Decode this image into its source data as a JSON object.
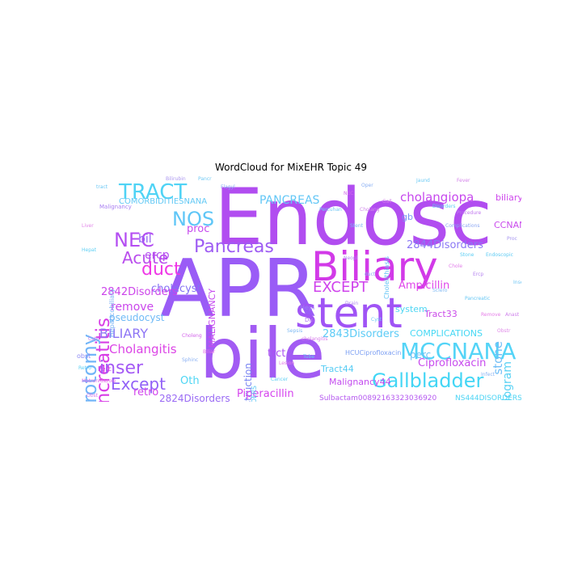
{
  "title": "WordCloud for MixEHR Topic 49",
  "words": [
    {
      "text": "Endosc",
      "color": "#b14df0"
    },
    {
      "text": "APR",
      "color": "#9a5cf6"
    },
    {
      "text": "bile",
      "color": "#a25bf3"
    },
    {
      "text": "Biliary",
      "color": "#d23ae8"
    },
    {
      "text": "stent",
      "color": "#a054f5"
    },
    {
      "text": "MCCNANA",
      "color": "#54d4f7"
    },
    {
      "text": "Gallbladder",
      "color": "#43d6f5"
    },
    {
      "text": "pancreatitis",
      "color": "#d83ce6"
    },
    {
      "text": "sphincterotomy",
      "color": "#72b5f8"
    },
    {
      "text": "TRACT",
      "color": "#4fd3f5"
    },
    {
      "text": "NEC",
      "color": "#b44ef2"
    },
    {
      "text": "NOS",
      "color": "#5fc6f7"
    },
    {
      "text": "Pancreas",
      "color": "#9e5cf3"
    },
    {
      "text": "Acute",
      "color": "#b94ded"
    },
    {
      "text": "duct",
      "color": "#ef38e6"
    },
    {
      "text": "inser",
      "color": "#a45af5"
    },
    {
      "text": "Except",
      "color": "#9262f7"
    },
    {
      "text": "BILIARY",
      "color": "#8e75f5"
    },
    {
      "text": "Cholangitis",
      "color": "#dc44e6"
    },
    {
      "text": "EXCEPT",
      "color": "#cf42ec"
    },
    {
      "text": "PANCREAS",
      "color": "#63c7f6"
    },
    {
      "text": "cholangiopa",
      "color": "#c748ee"
    },
    {
      "text": "2844Disorders",
      "color": "#8b78f5"
    },
    {
      "text": "Ampicillin",
      "color": "#df45ea"
    },
    {
      "text": "2843Disorders",
      "color": "#5bcbf6"
    },
    {
      "text": "COMPLICATIONS",
      "color": "#46d8f4"
    },
    {
      "text": "stone",
      "color": "#6fbdf6"
    },
    {
      "text": "Cholangiogram",
      "color": "#5ad2f4"
    },
    {
      "text": "Ciprofloxacin",
      "color": "#c84bee"
    },
    {
      "text": "ercp",
      "color": "#b54ef0"
    },
    {
      "text": "cholecyst",
      "color": "#8471f4"
    },
    {
      "text": "bil",
      "color": "#9562f4"
    },
    {
      "text": "remove",
      "color": "#ca47ec"
    },
    {
      "text": "2842Disorders",
      "color": "#cc44ea"
    },
    {
      "text": "pseudocyst",
      "color": "#6fbaf6"
    },
    {
      "text": "proc",
      "color": "#c749ee"
    },
    {
      "text": "MALIGNANCY",
      "color": "#c64af0"
    },
    {
      "text": "Obstruction",
      "color": "#7a86f2"
    },
    {
      "text": "trct",
      "color": "#ab52f3"
    },
    {
      "text": "Oth",
      "color": "#4dd6f4"
    },
    {
      "text": "retro",
      "color": "#d142ec"
    },
    {
      "text": "2824Disorders",
      "color": "#9a6bf4"
    },
    {
      "text": "Piperacillin",
      "color": "#d543ee"
    },
    {
      "text": "Malignancy44",
      "color": "#c44cef"
    },
    {
      "text": "Tract33",
      "color": "#ca4ae9"
    },
    {
      "text": "Tract44",
      "color": "#56ccf4"
    },
    {
      "text": "perc",
      "color": "#6cc2f5"
    },
    {
      "text": "system",
      "color": "#4fd6f3"
    },
    {
      "text": "CCNANA",
      "color": "#ca4bec"
    },
    {
      "text": "biliary",
      "color": "#ce49ec"
    },
    {
      "text": "gb",
      "color": "#7a95f4"
    },
    {
      "text": "COMORBIDITIESNANA",
      "color": "#63c9f5"
    },
    {
      "text": "Sulbactam00892163323036920",
      "color": "#b65af0"
    },
    {
      "text": "NS444DISORDERS",
      "color": "#4cd4f4"
    },
    {
      "text": "NS43DISORDERS",
      "color": "#59c6f4"
    },
    {
      "text": "Cholelithiasis",
      "color": "#65c4f5"
    },
    {
      "text": "Hepaticobiliary",
      "color": "#77b0f4"
    },
    {
      "text": "HCUCiprofloxacin",
      "color": "#7da0f3"
    },
    {
      "text": "Hepi",
      "color": "#9a7cf4"
    },
    {
      "text": "Perc",
      "color": "#c24ded"
    },
    {
      "text": "obst",
      "color": "#8f8cf4"
    },
    {
      "text": "Dis",
      "color": "#b070f0"
    },
    {
      "text": "Malignancy",
      "color": "#a87ff2"
    },
    {
      "text": "Flagyl",
      "color": "#8bb0f5"
    },
    {
      "text": "Choleng",
      "color": "#d364ea"
    },
    {
      "text": "Percuhan",
      "color": "#73c8f4"
    },
    {
      "text": "NEC",
      "color": "#d06aeb"
    },
    {
      "text": "tract",
      "color": "#6cc8f5"
    },
    {
      "text": "Metronidazole",
      "color": "#e06ee9"
    },
    {
      "text": "Disorders",
      "color": "#5ccff4"
    },
    {
      "text": "Procedure",
      "color": "#c078ee"
    },
    {
      "text": "Stent",
      "color": "#7ab8f4"
    },
    {
      "text": "duct",
      "color": "#8aa5f4"
    },
    {
      "text": "cholangitis",
      "color": "#d77aea"
    },
    {
      "text": "Endoscopic",
      "color": "#5dcbf4"
    },
    {
      "text": "Ercp",
      "color": "#b684ef"
    },
    {
      "text": "Pancreatic",
      "color": "#66c7f4"
    },
    {
      "text": "Remove",
      "color": "#e67ee8"
    },
    {
      "text": "Complications",
      "color": "#8ca7f3"
    },
    {
      "text": "Obst",
      "color": "#d679ea"
    },
    {
      "text": "Retro",
      "color": "#5ed0f3"
    },
    {
      "text": "Cath",
      "color": "#c87eed"
    },
    {
      "text": "Sphinc",
      "color": "#8ab0f3"
    },
    {
      "text": "Biliar",
      "color": "#e774e8"
    },
    {
      "text": "Tube",
      "color": "#5fcdf4"
    },
    {
      "text": "Drain",
      "color": "#b48bef"
    },
    {
      "text": "Cyst",
      "color": "#6cc9f4"
    },
    {
      "text": "Gall",
      "color": "#d27cea"
    },
    {
      "text": "Oper",
      "color": "#8aaff3"
    },
    {
      "text": "Chole",
      "color": "#e27ce9"
    },
    {
      "text": "Stone",
      "color": "#5dcef4"
    },
    {
      "text": "Proc",
      "color": "#a796f0"
    },
    {
      "text": "Insert",
      "color": "#71c6f4"
    },
    {
      "text": "Anast",
      "color": "#cf81eb"
    },
    {
      "text": "Sepsis",
      "color": "#7fbaf3"
    },
    {
      "text": "Lesion",
      "color": "#e481e8"
    },
    {
      "text": "Cancer",
      "color": "#5fcff4"
    },
    {
      "text": "Neopl",
      "color": "#b08fef"
    },
    {
      "text": "Jaund",
      "color": "#6ecbf4"
    },
    {
      "text": "Fever",
      "color": "#d483ea"
    },
    {
      "text": "Infect",
      "color": "#8ab4f3"
    },
    {
      "text": "Liver",
      "color": "#e286e8"
    },
    {
      "text": "Hepat",
      "color": "#61d0f4"
    },
    {
      "text": "Bilirubin",
      "color": "#ab97ef"
    },
    {
      "text": "Pancr",
      "color": "#72caf4"
    },
    {
      "text": "Cholang",
      "color": "#d088ea"
    },
    {
      "text": "Sclero",
      "color": "#84bdf3"
    },
    {
      "text": "Obstr",
      "color": "#e08be8"
    }
  ]
}
